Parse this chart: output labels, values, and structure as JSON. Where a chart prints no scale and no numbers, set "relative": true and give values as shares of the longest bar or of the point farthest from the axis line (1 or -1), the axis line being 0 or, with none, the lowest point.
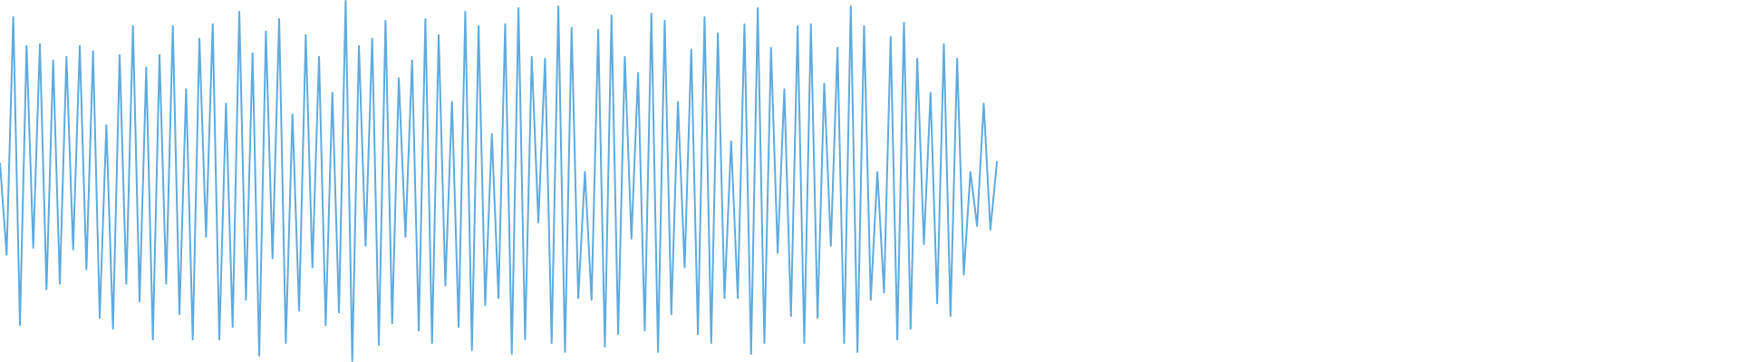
{
  "chart_data": {
    "type": "line",
    "relative": true,
    "categories": [
      null,
      null,
      null,
      null,
      null,
      null,
      null,
      null,
      null,
      null,
      null,
      null,
      null,
      null,
      null,
      null,
      null,
      null,
      null,
      null,
      null,
      null,
      null,
      null,
      null,
      null,
      null,
      null,
      null,
      null,
      null,
      null,
      null,
      null,
      null,
      null,
      null,
      null,
      null,
      null,
      null,
      null,
      null,
      null,
      null,
      null,
      null,
      null,
      null,
      null,
      null,
      null,
      null,
      null,
      null,
      null,
      null,
      null,
      null,
      null,
      null,
      null,
      null,
      null,
      null,
      null,
      null,
      null,
      null,
      null,
      null,
      null,
      null,
      null,
      null,
      null,
      null,
      null,
      null,
      null,
      null,
      null,
      null,
      null,
      null,
      null,
      null,
      null,
      null,
      null,
      null,
      null,
      null,
      null,
      null,
      null,
      null,
      null,
      null,
      null,
      null,
      null,
      null,
      null,
      null,
      null,
      null,
      null,
      null,
      null,
      null,
      null,
      null,
      null,
      null,
      null,
      null,
      null,
      null,
      null,
      null,
      null,
      null,
      null,
      null,
      null,
      null,
      null,
      null,
      null,
      null,
      null,
      null,
      null,
      null,
      null,
      null,
      null,
      null,
      null,
      null,
      null,
      null,
      null,
      null,
      null,
      null,
      null,
      null,
      null,
      null
    ],
    "series": [
      {
        "color": "#5dabe0",
        "values": [
          0.55,
          0.295,
          0.955,
          0.1,
          0.875,
          0.315,
          0.88,
          0.2,
          0.835,
          0.215,
          0.845,
          0.31,
          0.875,
          0.255,
          0.86,
          0.12,
          0.655,
          0.09,
          0.85,
          0.215,
          0.93,
          0.165,
          0.815,
          0.06,
          0.85,
          0.215,
          0.93,
          0.13,
          0.755,
          0.06,
          0.895,
          0.345,
          0.935,
          0.06,
          0.715,
          0.095,
          0.97,
          0.17,
          0.855,
          0.015,
          0.915,
          0.285,
          0.95,
          0.05,
          0.685,
          0.14,
          0.905,
          0.26,
          0.845,
          0.1,
          0.745,
          0.135,
          1.0,
          0,
          0.875,
          0.32,
          0.895,
          0.045,
          0.945,
          0.105,
          0.785,
          0.345,
          0.835,
          0.085,
          0.95,
          0.05,
          0.905,
          0.21,
          0.72,
          0.095,
          0.97,
          0.03,
          0.93,
          0.155,
          0.63,
          0.175,
          0.935,
          0.02,
          0.98,
          0.06,
          0.845,
          0.385,
          0.84,
          0.05,
          0.985,
          0.025,
          0.925,
          0.175,
          0.525,
          0.17,
          0.92,
          0.04,
          0.96,
          0.075,
          0.845,
          0.34,
          0.8,
          0.085,
          0.965,
          0.025,
          0.945,
          0.13,
          0.72,
          0.26,
          0.865,
          0.075,
          0.955,
          0.05,
          0.91,
          0.175,
          0.61,
          0.175,
          0.935,
          0.02,
          0.98,
          0.05,
          0.87,
          0.3,
          0.755,
          0.125,
          0.93,
          0.05,
          0.935,
          0.12,
          0.77,
          0.32,
          0.87,
          0.05,
          0.985,
          0.025,
          0.93,
          0.17,
          0.525,
          0.19,
          0.9,
          0.06,
          0.94,
          0.09,
          0.84,
          0.325,
          0.745,
          0.16,
          0.88,
          0.125,
          0.84,
          0.24,
          0.525,
          0.375,
          0.715,
          0.365,
          0.555
        ]
      }
    ]
  }
}
